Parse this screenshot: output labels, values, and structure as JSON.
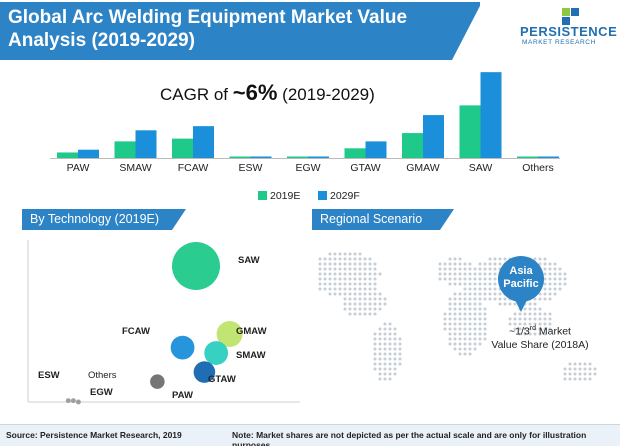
{
  "header": {
    "title_line1": "Global Arc Welding Equipment Market Value",
    "title_line2": "Analysis",
    "title_years": "(2019-2029)",
    "logo_word": "PERSISTENCE",
    "logo_sub": "MARKET RESEARCH"
  },
  "cagr": {
    "prefix": "CAGR of",
    "value": "~6%",
    "period": "(2019-2029)"
  },
  "colors": {
    "series_2019": "#1fc98a",
    "series_2029": "#1b8fd9",
    "header_blue": "#2c83c6"
  },
  "chart_data": [
    {
      "type": "bar",
      "title": "",
      "categories": [
        "PAW",
        "SMAW",
        "FCAW",
        "ESW",
        "EGW",
        "GTAW",
        "GMAW",
        "SAW",
        "Others"
      ],
      "series": [
        {
          "name": "2019E",
          "values": [
            4,
            12,
            14,
            0.5,
            0.5,
            7,
            18,
            38,
            0.5
          ]
        },
        {
          "name": "2029F",
          "values": [
            6,
            20,
            23,
            0.8,
            0.8,
            12,
            31,
            62,
            0.8
          ]
        }
      ],
      "ylim": [
        0,
        65
      ],
      "grid": false,
      "legend_placement": "bottom-center"
    },
    {
      "type": "scatter",
      "section_title": "By Technology (2019E)",
      "points": [
        {
          "label": "SAW",
          "x": 1.0,
          "y": 1.0,
          "size": 1.0,
          "color": "#1fc98a"
        },
        {
          "label": "GMAW",
          "x": 1.2,
          "y": 0.5,
          "size": 0.5,
          "color": "#bfe36a"
        },
        {
          "label": "FCAW",
          "x": 0.92,
          "y": 0.4,
          "size": 0.45,
          "color": "#1b8fd9"
        },
        {
          "label": "SMAW",
          "x": 1.12,
          "y": 0.36,
          "size": 0.45,
          "color": "#2ccfc0"
        },
        {
          "label": "GTAW",
          "x": 1.05,
          "y": 0.22,
          "size": 0.4,
          "color": "#1565b0"
        },
        {
          "label": "PAW",
          "x": 0.77,
          "y": 0.15,
          "size": 0.24,
          "color": "#6f6f6f"
        },
        {
          "label": "ESW",
          "x": 0.24,
          "y": 0.01,
          "size": 0.02,
          "color": "#9a9a9a"
        },
        {
          "label": "Others",
          "x": 0.27,
          "y": 0.01,
          "size": 0.02,
          "color": "#9a9a9a"
        },
        {
          "label": "EGW",
          "x": 0.3,
          "y": 0.0,
          "size": 0.02,
          "color": "#9a9a9a"
        }
      ]
    }
  ],
  "legend": [
    {
      "name": "2019E",
      "color": "#1fc98a"
    },
    {
      "name": "2029F",
      "color": "#1b8fd9"
    }
  ],
  "regional": {
    "section_title": "Regional Scenario",
    "badge_line1": "Asia",
    "badge_line2": "Pacific",
    "share_prefix": "~1/3",
    "share_sup": "rd",
    "share_text1": " Market",
    "share_text2": "Value Share (2018A)"
  },
  "footer": {
    "source": "Source: Persistence Market Research, 2019",
    "note": "Note: Market shares are not depicted as per the actual scale and are only for illustration purposes"
  }
}
